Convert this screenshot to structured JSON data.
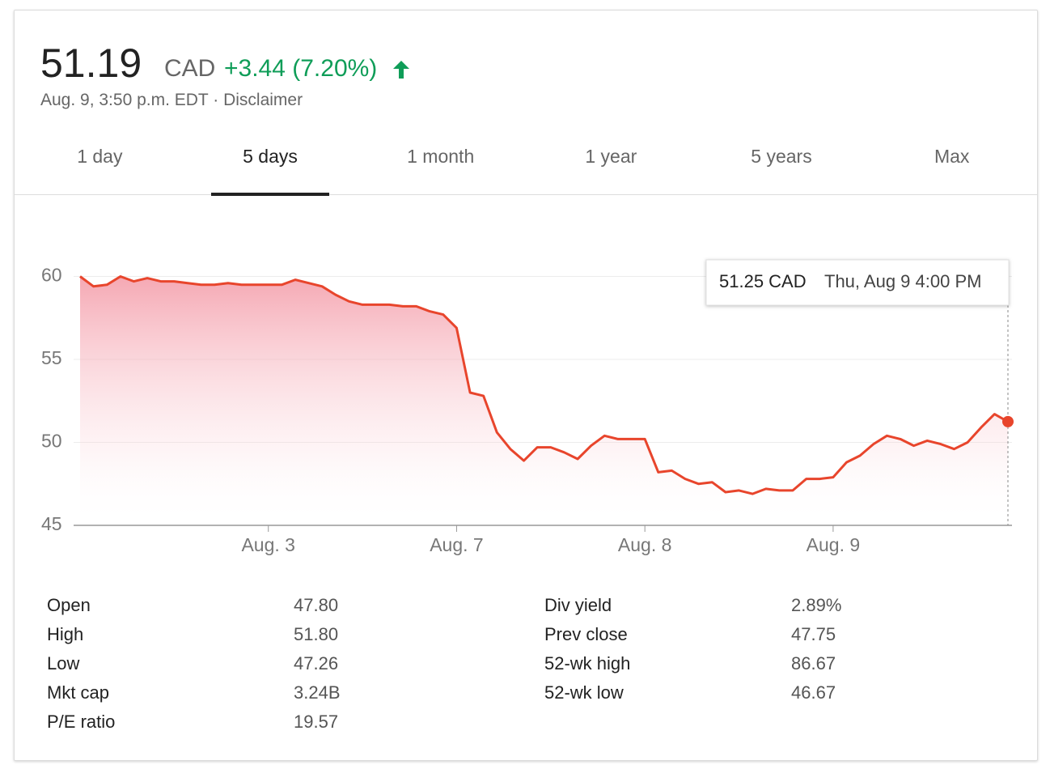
{
  "header": {
    "price": "51.19",
    "currency": "CAD",
    "change": "+3.44 (7.20%)",
    "timestamp": "Aug. 9, 3:50 p.m. EDT",
    "separator": "·",
    "disclaimer": "Disclaimer"
  },
  "tabs": {
    "items": [
      "1 day",
      "5 days",
      "1 month",
      "1 year",
      "5 years",
      "Max"
    ],
    "selected": 1
  },
  "chart_data": {
    "type": "line",
    "color": "#e8452c",
    "grid": true,
    "categories": [
      null,
      null,
      null,
      null,
      null,
      null,
      null,
      null,
      null,
      null,
      null,
      null,
      null,
      null,
      "Aug. 3",
      null,
      null,
      null,
      null,
      null,
      null,
      null,
      null,
      null,
      null,
      null,
      null,
      null,
      "Aug. 7",
      null,
      null,
      null,
      null,
      null,
      null,
      null,
      null,
      null,
      null,
      null,
      null,
      null,
      "Aug. 8",
      null,
      null,
      null,
      null,
      null,
      null,
      null,
      null,
      null,
      null,
      null,
      null,
      null,
      "Aug. 9",
      null,
      null,
      null,
      null,
      null,
      null,
      null,
      null,
      null,
      null,
      null,
      null,
      null
    ],
    "values": [
      60.0,
      59.4,
      59.5,
      60.0,
      59.7,
      59.9,
      59.7,
      59.7,
      59.6,
      59.5,
      59.5,
      59.6,
      59.5,
      59.5,
      59.5,
      59.5,
      59.8,
      59.6,
      59.4,
      58.9,
      58.5,
      58.3,
      58.3,
      58.3,
      58.2,
      58.2,
      57.9,
      57.7,
      56.9,
      53.0,
      52.8,
      50.6,
      49.6,
      48.9,
      49.7,
      49.7,
      49.4,
      49.0,
      49.8,
      50.4,
      50.2,
      50.2,
      50.2,
      48.2,
      48.3,
      47.8,
      47.5,
      47.6,
      47.0,
      47.1,
      46.9,
      47.2,
      47.1,
      47.1,
      47.8,
      47.8,
      47.9,
      48.8,
      49.2,
      49.9,
      50.4,
      50.2,
      49.8,
      50.1,
      49.9,
      49.6,
      50.0,
      50.9,
      51.7,
      51.25
    ],
    "ylim": [
      45,
      61
    ],
    "yticks": [
      45,
      50,
      55,
      60
    ],
    "tooltip": {
      "value": "51.25 CAD",
      "time": "Thu, Aug 9 4:00 PM"
    }
  },
  "stats": {
    "left": [
      [
        "Open",
        "47.80"
      ],
      [
        "High",
        "51.80"
      ],
      [
        "Low",
        "47.26"
      ],
      [
        "Mkt cap",
        "3.24B"
      ],
      [
        "P/E ratio",
        "19.57"
      ]
    ],
    "right": [
      [
        "Div yield",
        "2.89%"
      ],
      [
        "Prev close",
        "47.75"
      ],
      [
        "52-wk high",
        "86.67"
      ],
      [
        "52-wk low",
        "46.67"
      ]
    ]
  }
}
